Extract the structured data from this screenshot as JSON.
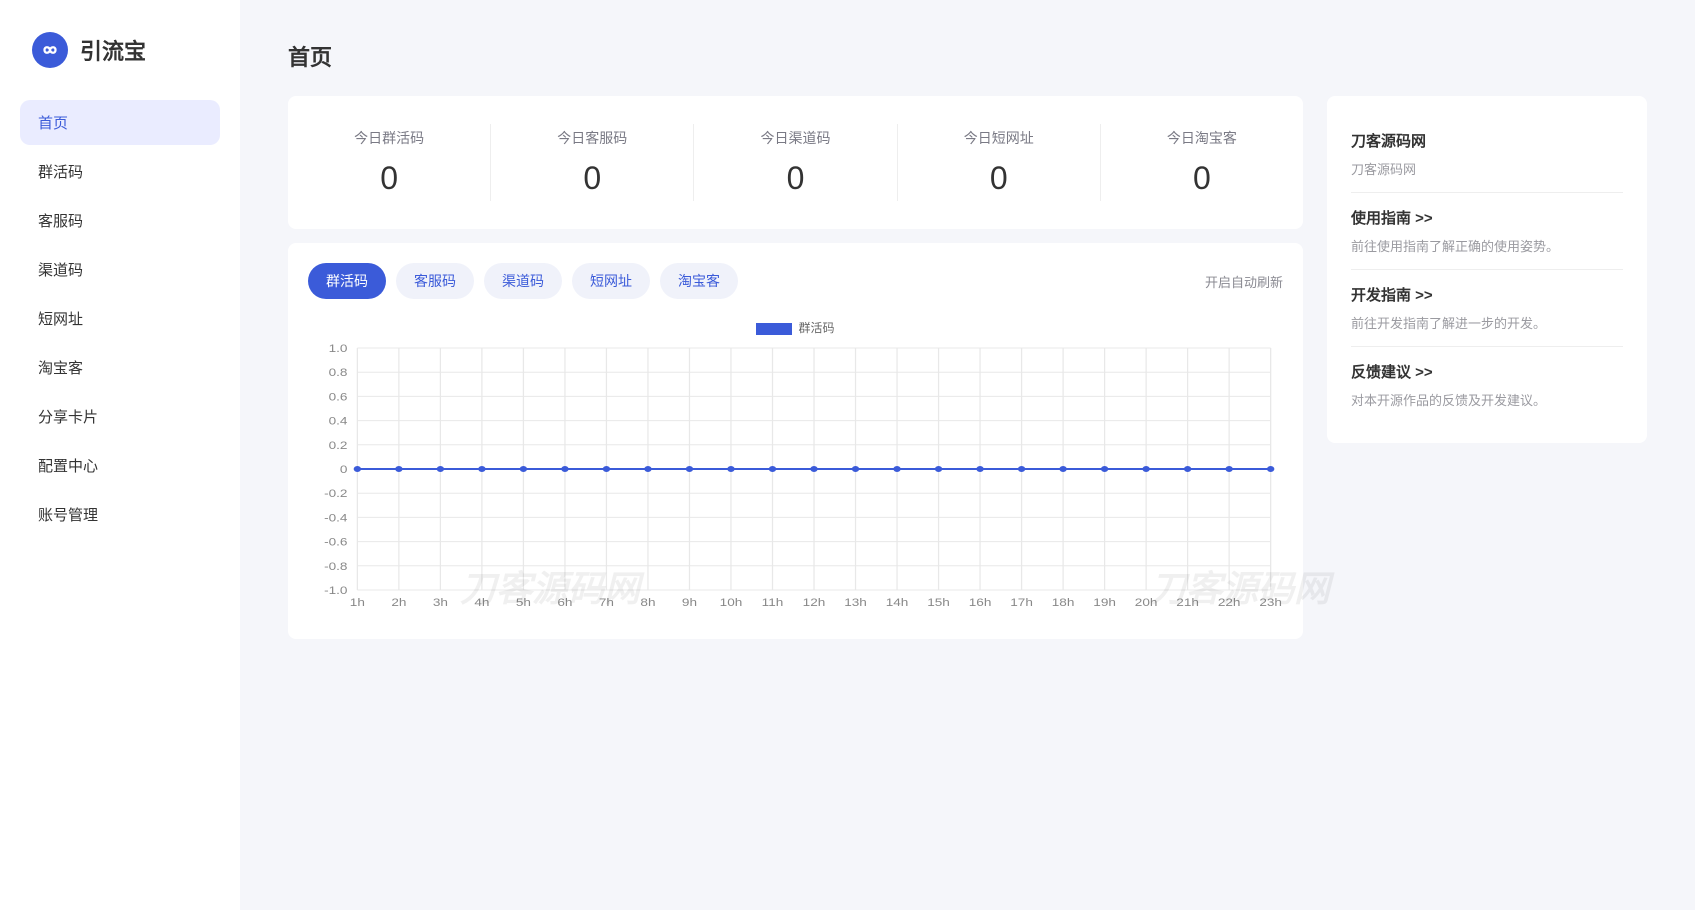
{
  "app": {
    "name": "引流宝"
  },
  "sidebar": {
    "items": [
      {
        "label": "首页",
        "active": true
      },
      {
        "label": "群活码",
        "active": false
      },
      {
        "label": "客服码",
        "active": false
      },
      {
        "label": "渠道码",
        "active": false
      },
      {
        "label": "短网址",
        "active": false
      },
      {
        "label": "淘宝客",
        "active": false
      },
      {
        "label": "分享卡片",
        "active": false
      },
      {
        "label": "配置中心",
        "active": false
      },
      {
        "label": "账号管理",
        "active": false
      }
    ]
  },
  "page": {
    "title": "首页"
  },
  "stats": [
    {
      "label": "今日群活码",
      "value": "0"
    },
    {
      "label": "今日客服码",
      "value": "0"
    },
    {
      "label": "今日渠道码",
      "value": "0"
    },
    {
      "label": "今日短网址",
      "value": "0"
    },
    {
      "label": "今日淘宝客",
      "value": "0"
    }
  ],
  "chart": {
    "type": "line",
    "tabs": [
      {
        "label": "群活码",
        "active": true
      },
      {
        "label": "客服码",
        "active": false
      },
      {
        "label": "渠道码",
        "active": false
      },
      {
        "label": "短网址",
        "active": false
      },
      {
        "label": "淘宝客",
        "active": false
      }
    ],
    "refresh_label": "开启自动刷新",
    "legend_label": "群活码",
    "x_labels": [
      "1h",
      "2h",
      "3h",
      "4h",
      "5h",
      "6h",
      "7h",
      "8h",
      "9h",
      "10h",
      "11h",
      "12h",
      "13h",
      "14h",
      "15h",
      "16h",
      "17h",
      "18h",
      "19h",
      "20h",
      "21h",
      "22h",
      "23h"
    ],
    "y_labels": [
      "1.0",
      "0.8",
      "0.6",
      "0.4",
      "0.2",
      "0",
      "-0.2",
      "-0.4",
      "-0.6",
      "-0.8",
      "-1.0"
    ],
    "ylim": [
      -1.0,
      1.0
    ],
    "ytick_step": 0.2,
    "values": [
      0,
      0,
      0,
      0,
      0,
      0,
      0,
      0,
      0,
      0,
      0,
      0,
      0,
      0,
      0,
      0,
      0,
      0,
      0,
      0,
      0,
      0,
      0
    ],
    "line_color": "#3b5bd9",
    "marker_color": "#3b5bd9",
    "grid_color": "#e8e8e8",
    "background_color": "#ffffff",
    "axis_text_color": "#888888",
    "marker_radius": 3,
    "line_width": 2
  },
  "info": {
    "sections": [
      {
        "title": "刀客源码网",
        "desc": "刀客源码网"
      },
      {
        "title": "使用指南 >>",
        "desc": "前往使用指南了解正确的使用姿势。"
      },
      {
        "title": "开发指南 >>",
        "desc": "前往开发指南了解进一步的开发。"
      },
      {
        "title": "反馈建议 >>",
        "desc": "对本开源作品的反馈及开发建议。"
      }
    ]
  },
  "watermark": "刀客源码网"
}
